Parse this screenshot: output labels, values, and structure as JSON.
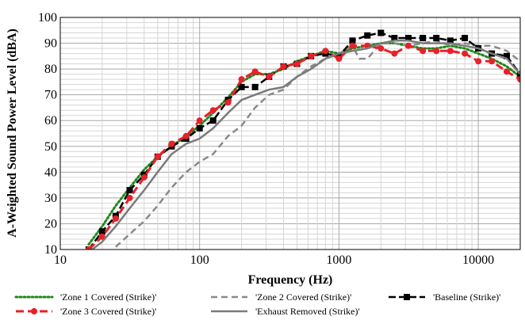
{
  "chart_data": {
    "type": "line",
    "xlabel": "Frequency (Hz)",
    "ylabel": "A-Weighted Sound Power Level (dBA)",
    "xscale": "log",
    "xlim": [
      10,
      20000
    ],
    "ylim": [
      10,
      100
    ],
    "x_ticks": [
      10,
      100,
      1000,
      10000
    ],
    "x_tick_labels": [
      "10",
      "100",
      "1000",
      "10000"
    ],
    "y_ticks": [
      10,
      20,
      30,
      40,
      50,
      60,
      70,
      80,
      90,
      100
    ],
    "y_tick_labels": [
      "10",
      "20",
      "30",
      "40",
      "50",
      "60",
      "70",
      "80",
      "90",
      "100"
    ],
    "grid": true,
    "legend_placement": "bottom",
    "series": [
      {
        "name": "'Zone 1 Covered (Strike)'",
        "color": "#1a8a1a",
        "style": "dotted",
        "x": [
          16,
          20,
          25,
          31.5,
          40,
          50,
          63,
          80,
          100,
          125,
          160,
          200,
          250,
          315,
          400,
          500,
          630,
          800,
          1000,
          1250,
          1600,
          2000,
          2500,
          3150,
          4000,
          5000,
          6300,
          8000,
          10000,
          12500,
          16000,
          20000
        ],
        "y": [
          12,
          19,
          27,
          34,
          41,
          46,
          50,
          54,
          58,
          63,
          69,
          75,
          78,
          78,
          80,
          83,
          85,
          87,
          86,
          88,
          89,
          90,
          90,
          89,
          88,
          88,
          89,
          88,
          86,
          84,
          81,
          77
        ]
      },
      {
        "name": "'Zone 2 Covered (Strike)'",
        "color": "#8a8a8a",
        "style": "dashed",
        "x": [
          25,
          31.5,
          40,
          50,
          63,
          80,
          100,
          125,
          160,
          200,
          250,
          315,
          400,
          500,
          630,
          800,
          1000,
          1250,
          1400,
          1600,
          2000,
          2500,
          3150,
          4000,
          5000,
          6300,
          8000,
          10000,
          12500,
          16000,
          20000
        ],
        "y": [
          11,
          16,
          21,
          27,
          34,
          40,
          44,
          47,
          54,
          58,
          65,
          70,
          72,
          77,
          81,
          84,
          86,
          89,
          84,
          84,
          90,
          90,
          89,
          90,
          91,
          89,
          90,
          89,
          89,
          87,
          83
        ]
      },
      {
        "name": "'Baseline (Strike)'",
        "color": "#000000",
        "style": "solid-square",
        "x": [
          16,
          20,
          25,
          31.5,
          40,
          50,
          63,
          80,
          100,
          125,
          160,
          200,
          250,
          315,
          400,
          500,
          630,
          800,
          1000,
          1250,
          1600,
          2000,
          2500,
          3150,
          4000,
          5000,
          6300,
          8000,
          10000,
          12500,
          16000,
          20000
        ],
        "y": [
          10,
          17,
          23,
          33,
          39,
          46,
          50,
          53,
          57,
          60,
          68,
          73,
          73,
          77,
          81,
          82,
          85,
          86,
          85,
          91,
          93,
          94,
          92,
          92,
          92,
          92,
          91,
          92,
          88,
          86,
          85,
          78
        ]
      },
      {
        "name": "'Zone 3 Covered (Strike)'",
        "color": "#e8202a",
        "style": "dashed-circle",
        "x": [
          16,
          20,
          25,
          31.5,
          40,
          50,
          63,
          80,
          100,
          125,
          160,
          200,
          250,
          315,
          400,
          500,
          630,
          800,
          1000,
          1250,
          1600,
          2000,
          2500,
          3150,
          4000,
          5000,
          6300,
          8000,
          10000,
          12500,
          16000,
          20000
        ],
        "y": [
          10,
          15,
          22,
          30,
          38,
          46,
          51,
          54,
          60,
          64,
          67,
          76,
          79,
          77,
          81,
          82,
          85,
          87,
          84,
          89,
          89,
          88,
          86,
          89,
          87,
          87,
          87,
          86,
          83,
          83,
          79,
          76
        ]
      },
      {
        "name": "'Exhaust Removed (Strike)'",
        "color": "#7a7a7a",
        "style": "solid",
        "x": [
          16,
          20,
          25,
          31.5,
          40,
          50,
          63,
          80,
          100,
          125,
          160,
          200,
          250,
          315,
          400,
          500,
          630,
          800,
          1000,
          1250,
          1600,
          2000,
          2500,
          3150,
          4000,
          5000,
          6300,
          8000,
          10000,
          12500,
          16000,
          20000
        ],
        "y": [
          9,
          13,
          19,
          26,
          33,
          40,
          47,
          51,
          53,
          57,
          63,
          68,
          70,
          72,
          73,
          77,
          80,
          84,
          86,
          87,
          88,
          90,
          91,
          91,
          90,
          90,
          90,
          89,
          88,
          86,
          84,
          78
        ]
      }
    ]
  }
}
